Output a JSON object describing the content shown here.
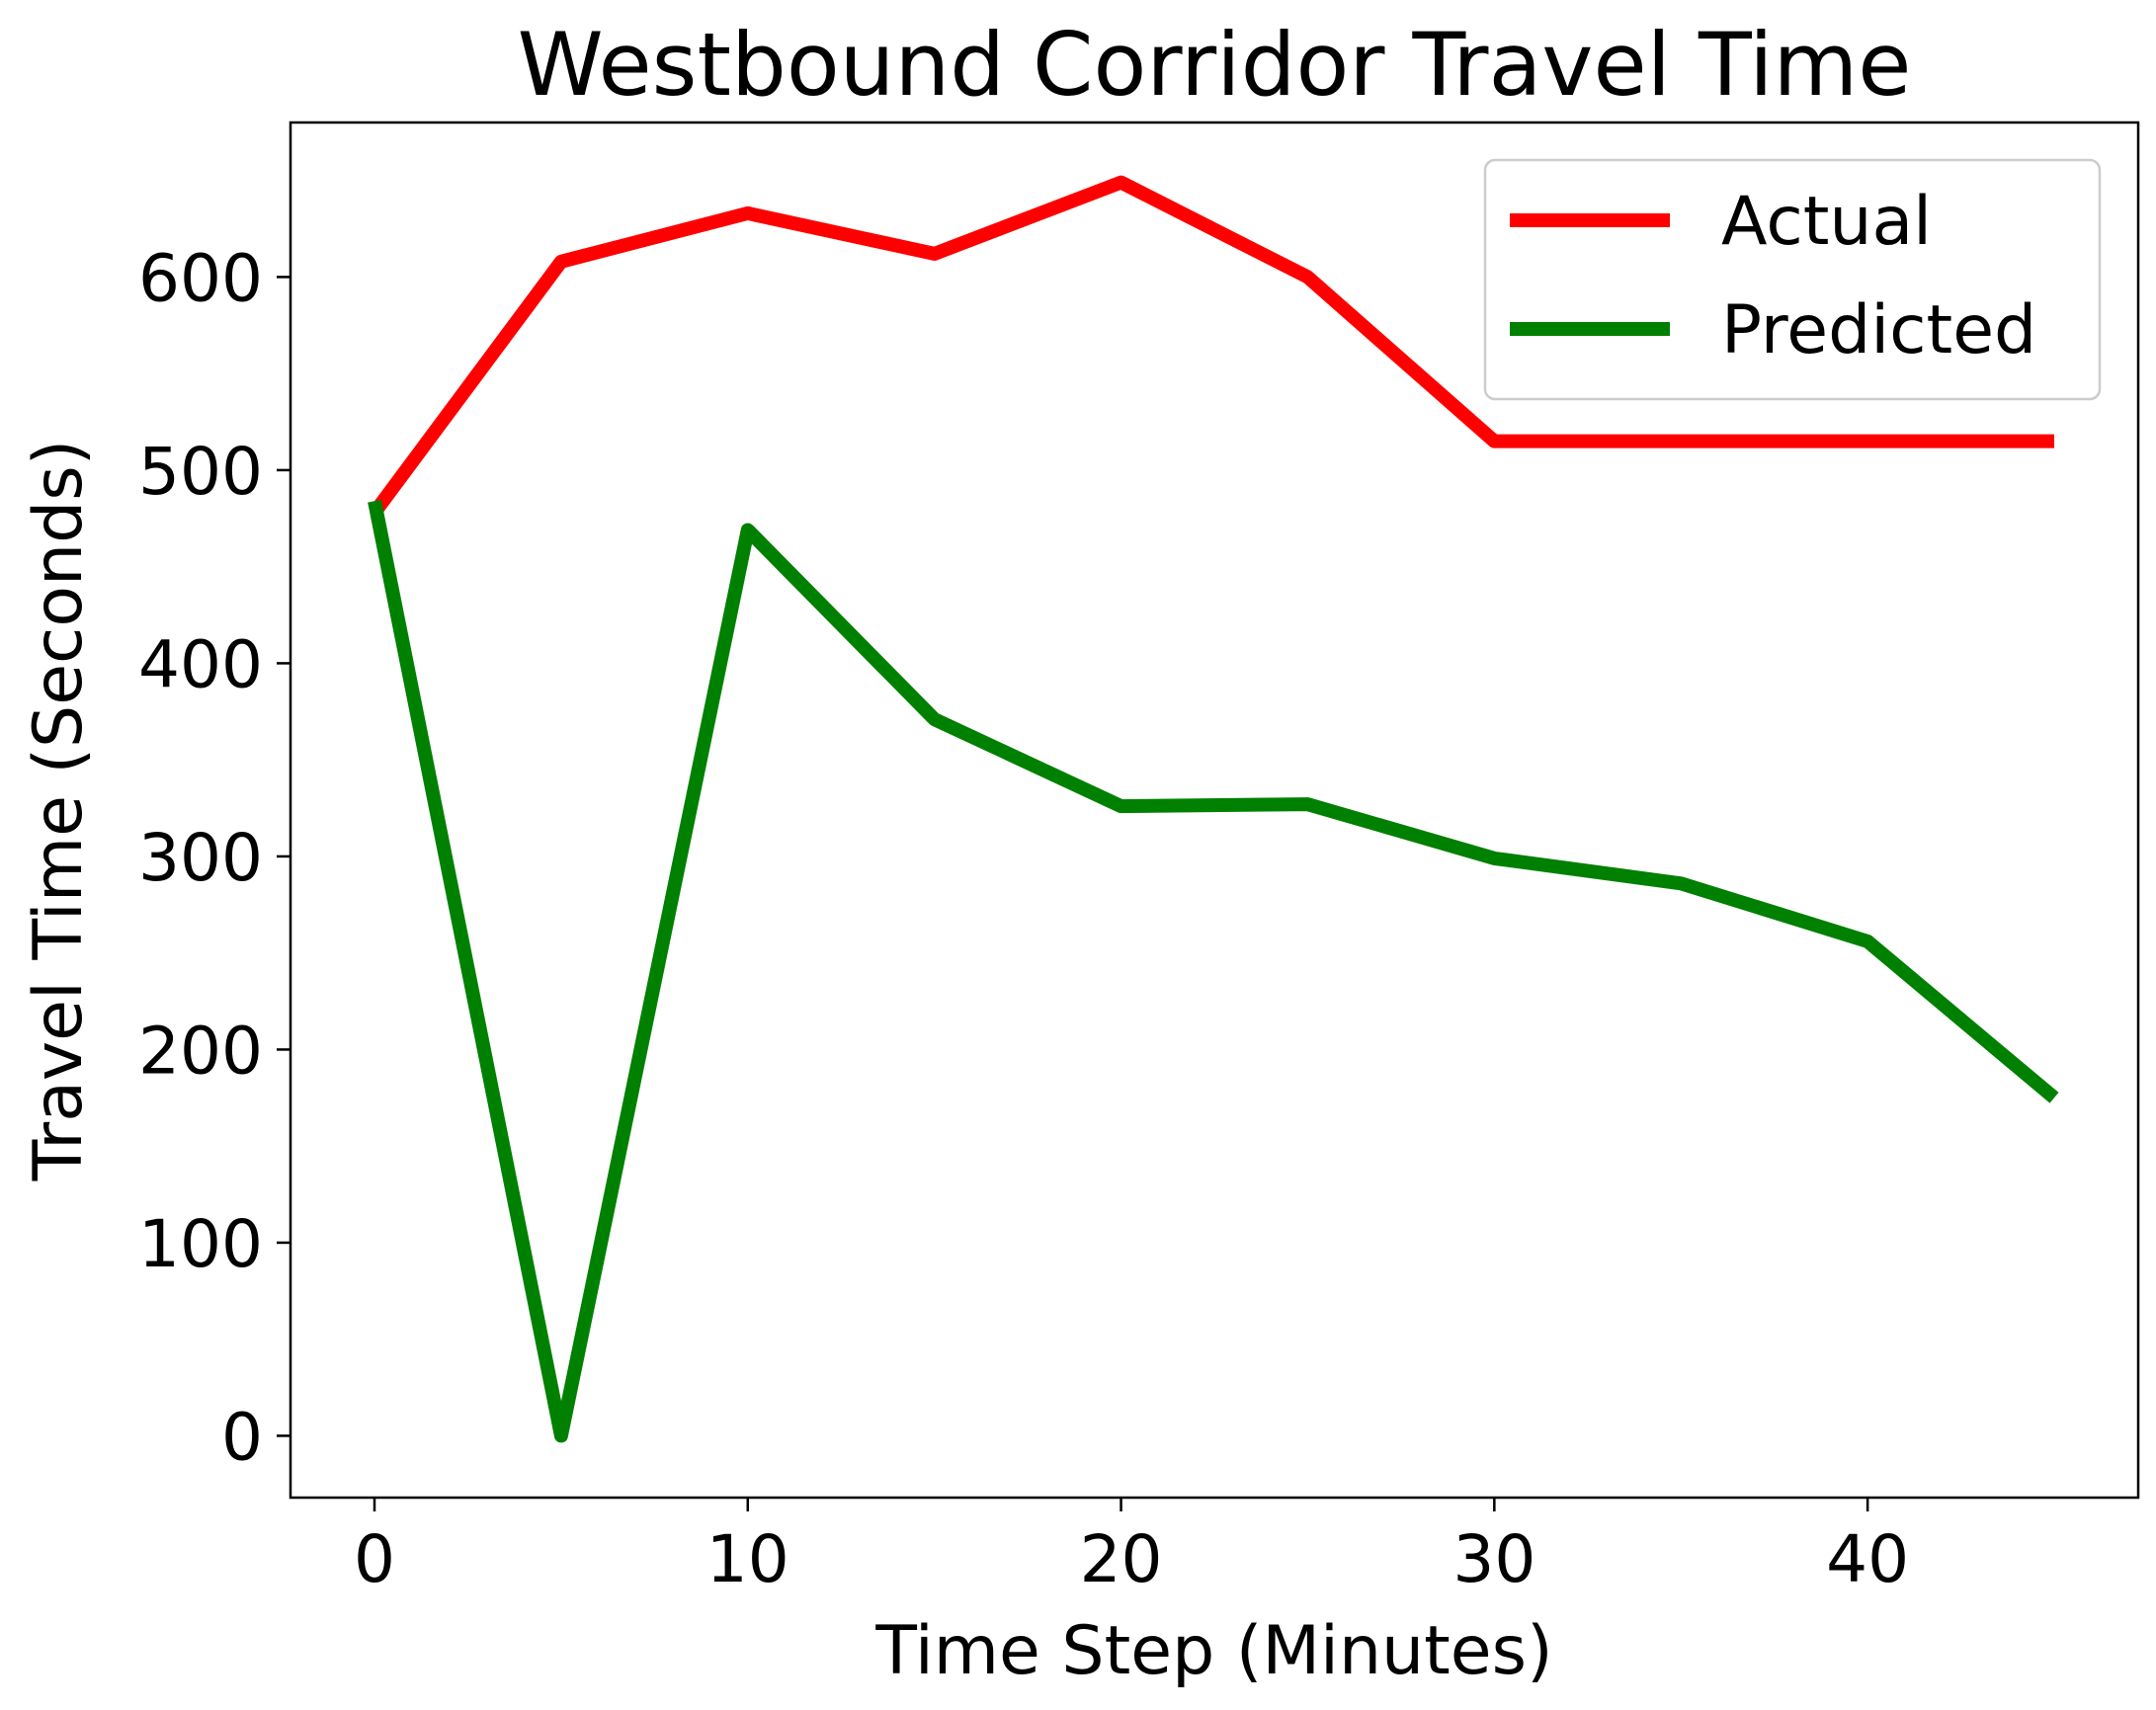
{
  "chart_data": {
    "type": "line",
    "title": "Westbound Corridor Travel Time",
    "xlabel": "Time Step (Minutes)",
    "ylabel": "Travel Time (Seconds)",
    "x": [
      0,
      5,
      10,
      15,
      20,
      25,
      30,
      35,
      40,
      45
    ],
    "xlim": [
      -2.25,
      47.25
    ],
    "ylim": [
      -32,
      680
    ],
    "xticks": [
      0,
      10,
      20,
      30,
      40
    ],
    "yticks": [
      0,
      100,
      200,
      300,
      400,
      500,
      600
    ],
    "grid": false,
    "legend_position": "top-right",
    "series": [
      {
        "name": "Actual",
        "color": "#ff0000",
        "values": [
          478,
          608,
          633,
          612,
          649,
          600,
          515,
          515,
          515,
          515
        ]
      },
      {
        "name": "Predicted",
        "color": "#008000",
        "values": [
          484,
          0,
          469,
          371,
          326,
          327,
          299,
          286,
          256,
          175
        ]
      }
    ]
  }
}
